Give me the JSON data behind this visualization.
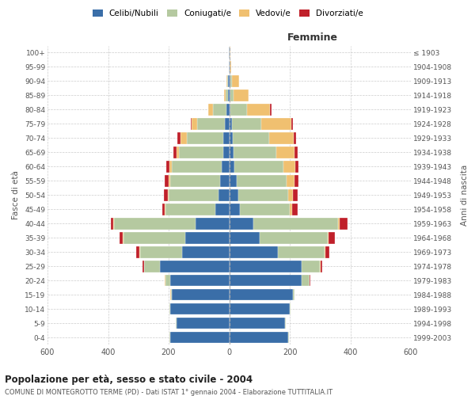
{
  "age_groups": [
    "0-4",
    "5-9",
    "10-14",
    "15-19",
    "20-24",
    "25-29",
    "30-34",
    "35-39",
    "40-44",
    "45-49",
    "50-54",
    "55-59",
    "60-64",
    "65-69",
    "70-74",
    "75-79",
    "80-84",
    "85-89",
    "90-94",
    "95-99",
    "100+"
  ],
  "birth_years": [
    "1999-2003",
    "1994-1998",
    "1989-1993",
    "1984-1988",
    "1979-1983",
    "1974-1978",
    "1969-1973",
    "1964-1968",
    "1959-1963",
    "1954-1958",
    "1949-1953",
    "1944-1948",
    "1939-1943",
    "1934-1938",
    "1929-1933",
    "1924-1928",
    "1919-1923",
    "1914-1918",
    "1909-1913",
    "1904-1908",
    "≤ 1903"
  ],
  "colors": {
    "celibi": "#3a6ea8",
    "coniugati": "#b5c9a0",
    "vedovi": "#f0c070",
    "divorziati": "#c0202a"
  },
  "maschi": {
    "celibi": [
      195,
      175,
      195,
      190,
      195,
      230,
      155,
      145,
      110,
      45,
      35,
      30,
      25,
      20,
      20,
      15,
      8,
      5,
      3,
      2,
      2
    ],
    "coniugati": [
      2,
      2,
      2,
      3,
      15,
      50,
      140,
      205,
      270,
      165,
      165,
      165,
      165,
      145,
      120,
      90,
      45,
      8,
      3,
      0,
      0
    ],
    "vedovi": [
      0,
      0,
      0,
      1,
      2,
      2,
      2,
      2,
      2,
      2,
      3,
      5,
      8,
      10,
      22,
      18,
      15,
      5,
      2,
      0,
      0
    ],
    "divorziati": [
      0,
      0,
      0,
      1,
      2,
      3,
      10,
      10,
      10,
      10,
      12,
      12,
      10,
      10,
      8,
      5,
      2,
      0,
      0,
      0,
      0
    ]
  },
  "femmine": {
    "celibi": [
      195,
      185,
      200,
      210,
      240,
      240,
      160,
      100,
      80,
      35,
      30,
      25,
      18,
      15,
      12,
      10,
      5,
      5,
      3,
      2,
      1
    ],
    "coniugati": [
      2,
      2,
      3,
      5,
      25,
      60,
      155,
      225,
      280,
      165,
      165,
      165,
      160,
      140,
      120,
      95,
      55,
      10,
      5,
      0,
      0
    ],
    "vedovi": [
      0,
      0,
      0,
      0,
      1,
      2,
      2,
      3,
      5,
      8,
      15,
      25,
      40,
      60,
      80,
      100,
      75,
      50,
      25,
      5,
      2
    ],
    "divorziati": [
      0,
      0,
      0,
      1,
      3,
      5,
      15,
      20,
      25,
      18,
      15,
      15,
      12,
      12,
      8,
      5,
      5,
      0,
      0,
      0,
      0
    ]
  },
  "title": "Popolazione per età, sesso e stato civile - 2004",
  "subtitle": "COMUNE DI MONTEGROTTO TERME (PD) - Dati ISTAT 1° gennaio 2004 - Elaborazione TUTTITALIA.IT",
  "ylabel_left": "Fasce di età",
  "ylabel_right": "Anni di nascita",
  "xlim": 600,
  "background_color": "#ffffff",
  "grid_color": "#cccccc"
}
